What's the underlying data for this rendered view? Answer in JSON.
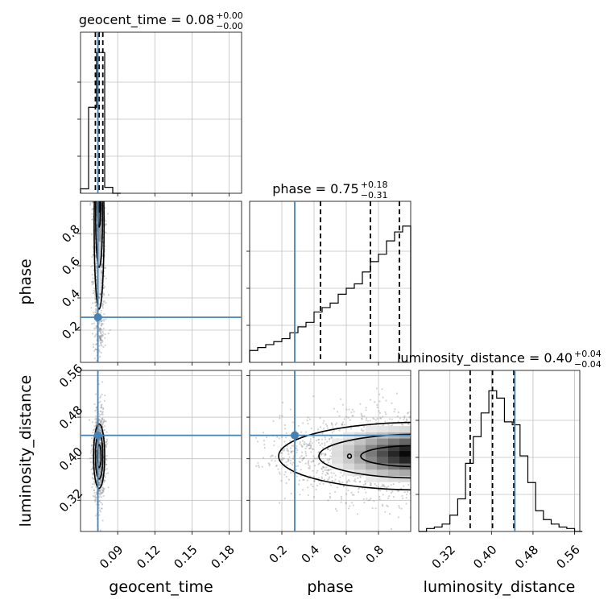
{
  "colors": {
    "truth": "#4682b4",
    "hist": "#000000",
    "grid": "#c0c0c0",
    "scatter": "#808080"
  },
  "chart_data": {
    "type": "corner",
    "parameters": [
      "geocent_time",
      "phase",
      "luminosity_distance"
    ],
    "axis_labels": {
      "geocent_time": "geocent_time",
      "phase": "phase",
      "luminosity_distance": "luminosity_distance"
    },
    "titles": {
      "geocent_time": {
        "prefix": "geocent_time = 0.08",
        "plus": "+0.00",
        "minus": "−0.00"
      },
      "phase": {
        "prefix": "phase = 0.75",
        "plus": "+0.18",
        "minus": "−0.31"
      },
      "luminosity_distance": {
        "prefix": "luminosity_distance = 0.40",
        "plus": "+0.04",
        "minus": "−0.04"
      }
    },
    "ranges": {
      "geocent_time": [
        0.06,
        0.19
      ],
      "phase": [
        0.0,
        1.0
      ],
      "luminosity_distance": [
        0.26,
        0.57
      ]
    },
    "ticks": {
      "geocent_time": [
        0.09,
        0.12,
        0.15,
        0.18
      ],
      "phase": [
        0.2,
        0.4,
        0.6,
        0.8
      ],
      "luminosity_distance": [
        0.32,
        0.4,
        0.48,
        0.56
      ]
    },
    "tick_labels": {
      "geocent_time": [
        "0.09",
        "0.12",
        "0.15",
        "0.18"
      ],
      "phase": [
        "0.2",
        "0.4",
        "0.6",
        "0.8"
      ],
      "luminosity_distance": [
        "0.32",
        "0.40",
        "0.48",
        "0.56"
      ]
    },
    "truths": {
      "geocent_time": 0.074,
      "phase": 0.28,
      "luminosity_distance": 0.445
    },
    "quantiles": {
      "geocent_time": [
        0.072,
        0.075,
        0.078
      ],
      "phase": [
        0.44,
        0.75,
        0.93
      ],
      "luminosity_distance": [
        0.359,
        0.402,
        0.443
      ]
    },
    "histograms": {
      "geocent_time": {
        "edges": [
          0.06,
          0.0665,
          0.073,
          0.0795,
          0.086,
          0.0925
        ],
        "counts": [
          0.03,
          0.58,
          0.95,
          0.04,
          0.0
        ]
      },
      "phase": {
        "edges": [
          0.0,
          0.05,
          0.1,
          0.15,
          0.2,
          0.25,
          0.3,
          0.35,
          0.4,
          0.45,
          0.5,
          0.55,
          0.6,
          0.65,
          0.7,
          0.75,
          0.8,
          0.85,
          0.9,
          0.95,
          1.0
        ],
        "counts": [
          0.08,
          0.1,
          0.12,
          0.14,
          0.16,
          0.2,
          0.24,
          0.27,
          0.34,
          0.37,
          0.4,
          0.46,
          0.5,
          0.53,
          0.61,
          0.68,
          0.73,
          0.82,
          0.88,
          0.92
        ]
      },
      "luminosity_distance": {
        "edges": [
          0.26,
          0.275,
          0.29,
          0.305,
          0.32,
          0.335,
          0.35,
          0.365,
          0.38,
          0.395,
          0.41,
          0.425,
          0.44,
          0.455,
          0.47,
          0.485,
          0.5,
          0.515,
          0.53,
          0.545,
          0.56,
          0.575
        ],
        "counts": [
          0.0,
          0.02,
          0.03,
          0.05,
          0.11,
          0.22,
          0.46,
          0.64,
          0.8,
          0.95,
          0.9,
          0.74,
          0.72,
          0.51,
          0.33,
          0.14,
          0.08,
          0.05,
          0.03,
          0.02,
          0.0
        ]
      }
    }
  }
}
